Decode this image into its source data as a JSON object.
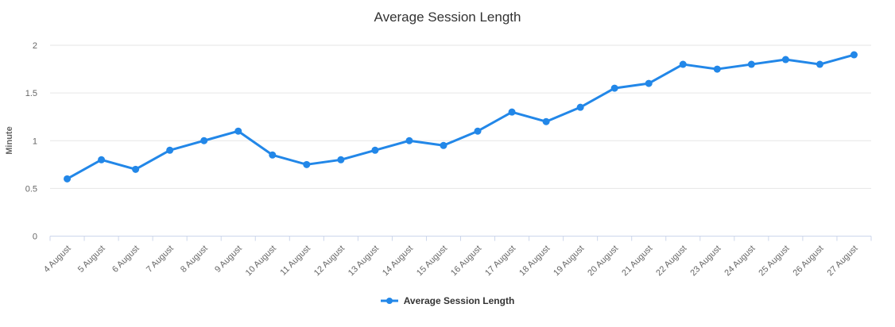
{
  "chart_data": {
    "type": "line",
    "title": "Average Session Length",
    "xlabel": "",
    "ylabel": "Minute",
    "categories": [
      "4 August",
      "5 August",
      "6 August",
      "7 August",
      "8 August",
      "9 August",
      "10 August",
      "11 August",
      "12 August",
      "13 August",
      "14 August",
      "15 August",
      "16 August",
      "17 August",
      "18 August",
      "19 August",
      "20 August",
      "21 August",
      "22 August",
      "23 August",
      "24 August",
      "25 August",
      "26 August",
      "27 August"
    ],
    "series": [
      {
        "name": "Average Session Length",
        "color": "#2287e8",
        "values": [
          0.6,
          0.8,
          0.7,
          0.9,
          1.0,
          1.1,
          0.85,
          0.75,
          0.8,
          0.9,
          1.0,
          0.95,
          1.1,
          1.3,
          1.2,
          1.35,
          1.55,
          1.6,
          1.8,
          1.75,
          1.8,
          1.85,
          1.8,
          1.9
        ]
      }
    ],
    "ylim": [
      0,
      2
    ],
    "yticks": [
      0,
      0.5,
      1,
      1.5,
      2
    ],
    "grid": true,
    "legend_position": "bottom",
    "colors": {
      "grid_line": "#e6e6e6",
      "axis_line": "#ccd6eb",
      "tick_label": "#666666",
      "title_text": "#333333",
      "legend_text": "#333333"
    }
  }
}
